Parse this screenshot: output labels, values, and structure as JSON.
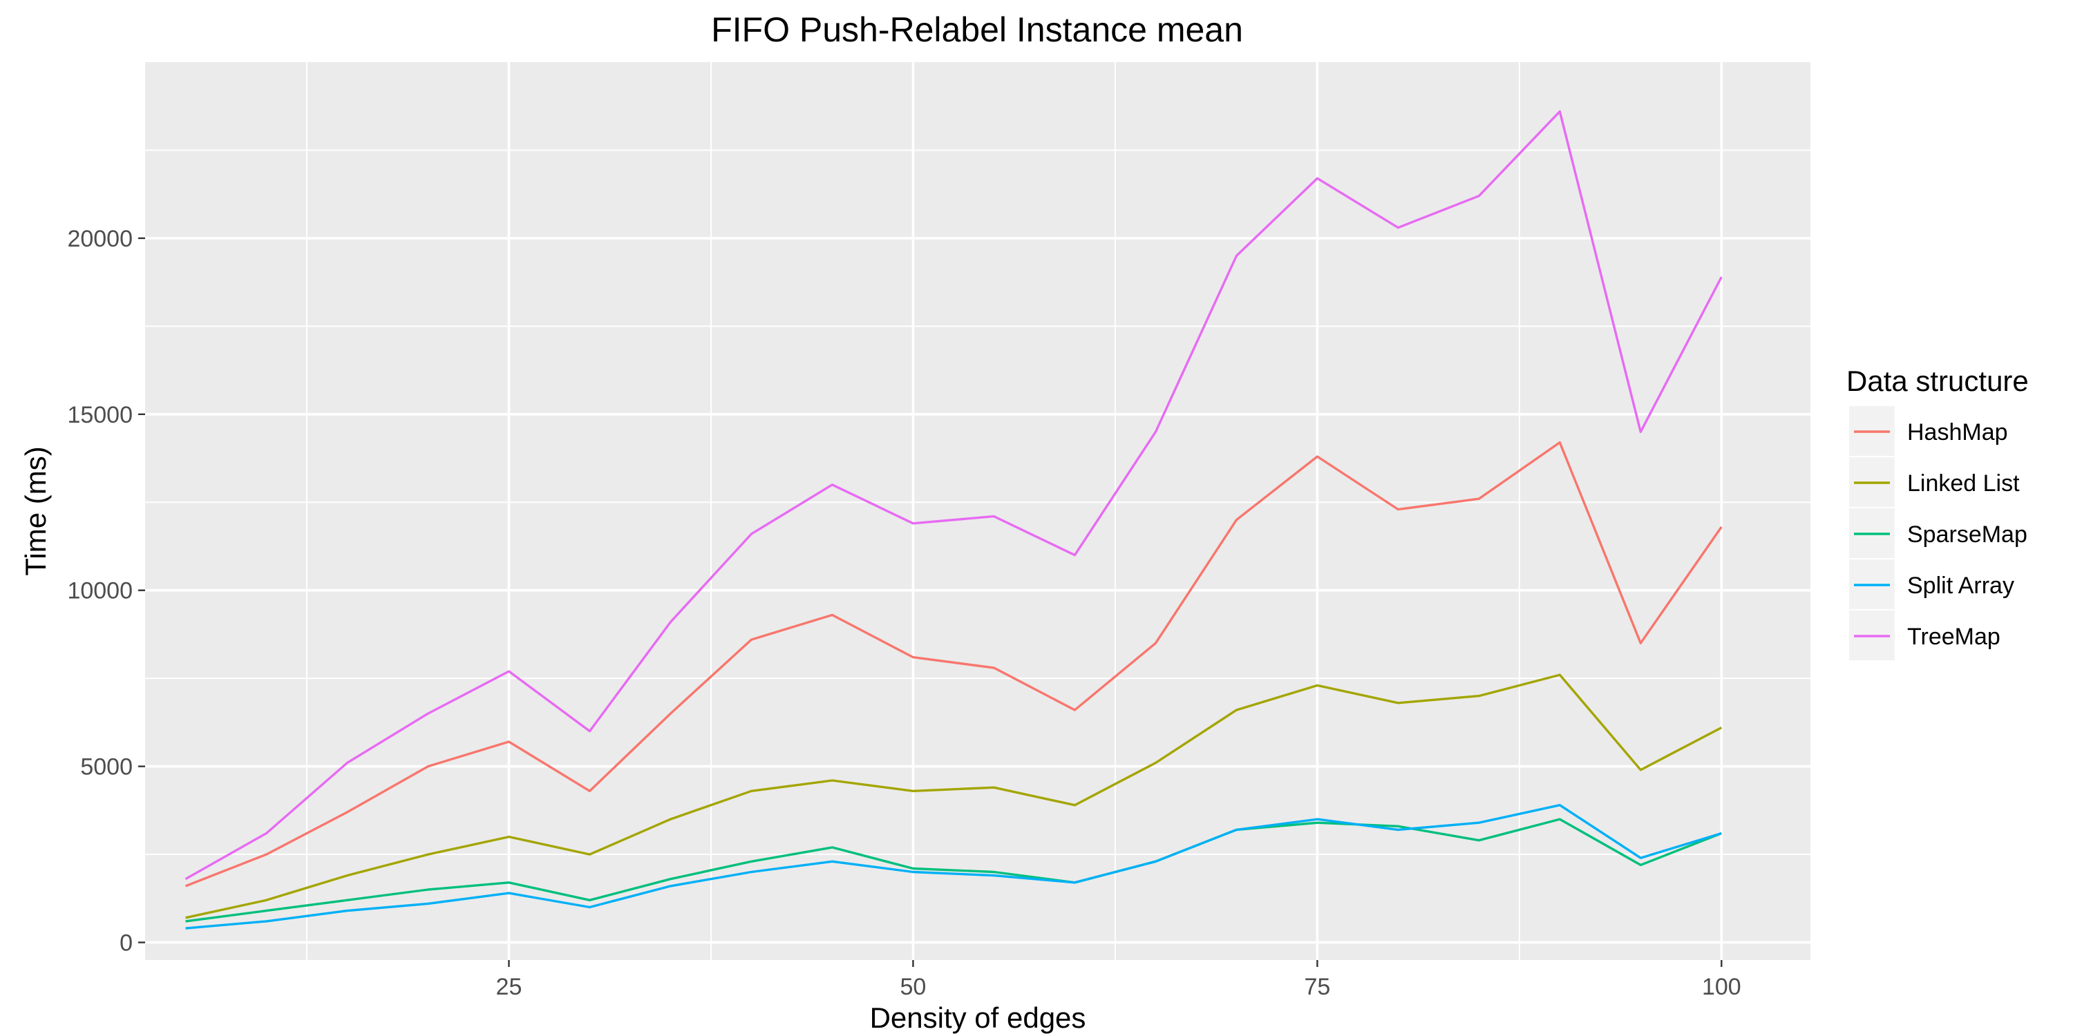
{
  "chart_data": {
    "type": "line",
    "title": "FIFO Push-Relabel Instance mean",
    "xlabel": "Density of edges",
    "ylabel": "Time (ms)",
    "xlim": [
      2.5,
      105.5
    ],
    "ylim": [
      -500,
      25000
    ],
    "x_ticks": [
      25,
      50,
      75,
      100
    ],
    "y_ticks": [
      0,
      5000,
      10000,
      15000,
      20000
    ],
    "grid": true,
    "background": "#ebebeb",
    "legend_title": "Data structure",
    "legend_position": "right",
    "x": [
      5,
      10,
      15,
      20,
      25,
      30,
      35,
      40,
      45,
      50,
      55,
      60,
      65,
      70,
      75,
      80,
      85,
      90,
      95,
      100
    ],
    "series": [
      {
        "name": "HashMap",
        "color": "#F8766D",
        "values": [
          1600,
          2500,
          3700,
          5000,
          5700,
          4300,
          6500,
          8600,
          9300,
          8100,
          7800,
          6600,
          8500,
          12000,
          13800,
          12300,
          12600,
          14200,
          8500,
          11800
        ]
      },
      {
        "name": "Linked List",
        "color": "#A3A500",
        "values": [
          700,
          1200,
          1900,
          2500,
          3000,
          2500,
          3500,
          4300,
          4600,
          4300,
          4400,
          3900,
          5100,
          6600,
          7300,
          6800,
          7000,
          7600,
          4900,
          6100
        ]
      },
      {
        "name": "SparseMap",
        "color": "#00BF7D",
        "values": [
          600,
          900,
          1200,
          1500,
          1700,
          1200,
          1800,
          2300,
          2700,
          2100,
          2000,
          1700,
          2300,
          3200,
          3400,
          3300,
          2900,
          3500,
          2200,
          3100
        ]
      },
      {
        "name": "Split Array",
        "color": "#00B0F6",
        "values": [
          400,
          600,
          900,
          1100,
          1400,
          1000,
          1600,
          2000,
          2300,
          2000,
          1900,
          1700,
          2300,
          3200,
          3500,
          3200,
          3400,
          3900,
          2400,
          3100
        ]
      },
      {
        "name": "TreeMap",
        "color": "#E76BF3",
        "values": [
          1800,
          3100,
          5100,
          6500,
          7700,
          6000,
          9100,
          11600,
          13000,
          11900,
          12100,
          11000,
          14500,
          19500,
          21700,
          20300,
          21200,
          23600,
          14500,
          18900
        ]
      }
    ]
  }
}
